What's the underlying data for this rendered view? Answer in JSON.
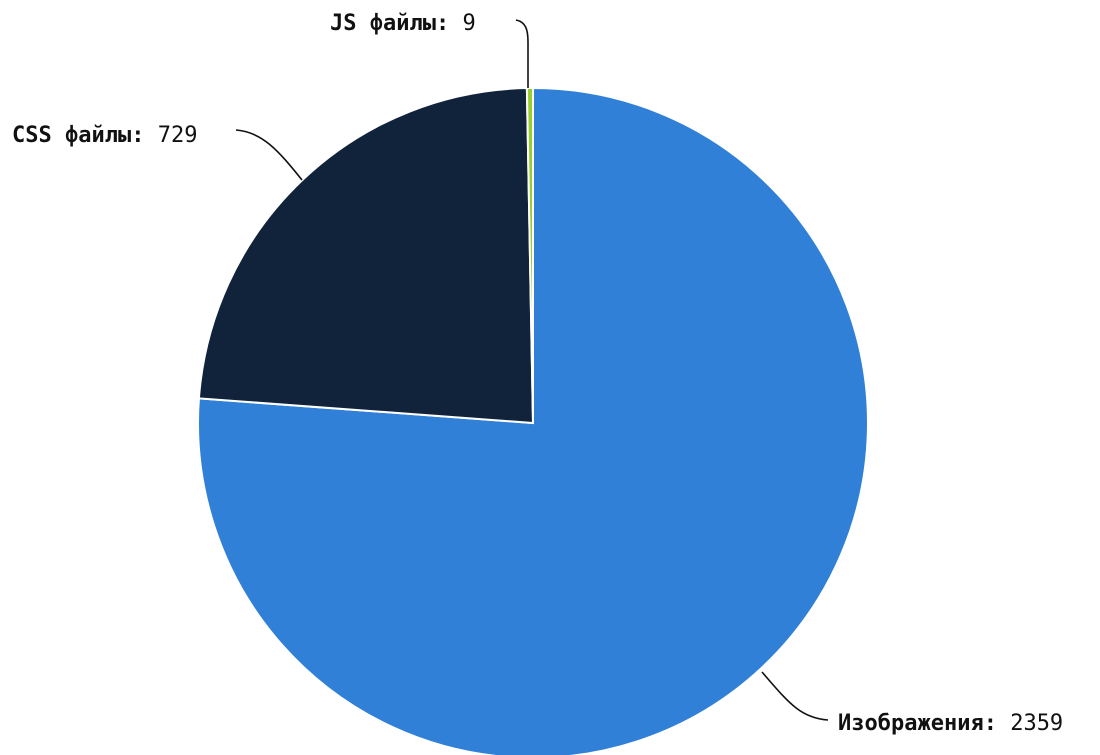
{
  "chart_data": {
    "type": "pie",
    "title": "",
    "slices": [
      {
        "label": "Изображения",
        "value": 2359,
        "color": "#3180d8"
      },
      {
        "label": "CSS файлы",
        "value": 729,
        "color": "#10233b"
      },
      {
        "label": "JS файлы",
        "value": 9,
        "color": "#9acd32"
      }
    ],
    "start_angle": "12 o'clock",
    "direction": "clockwise",
    "label_format": "{label}: {value}",
    "legend": "none"
  }
}
